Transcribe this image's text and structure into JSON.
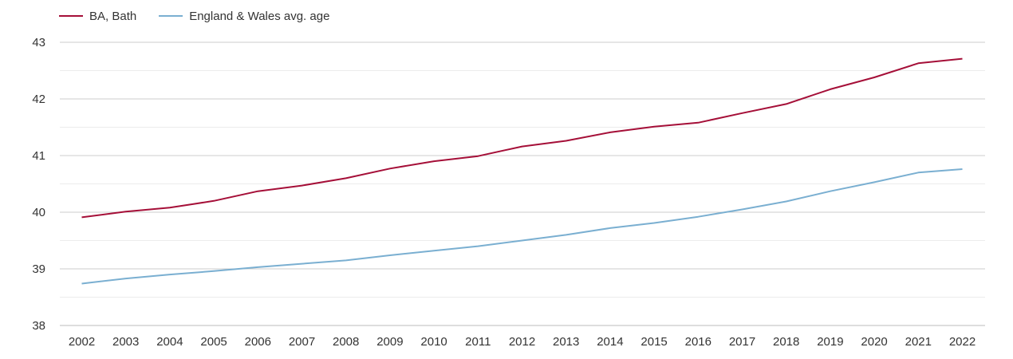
{
  "chart_data": {
    "type": "line",
    "title": "",
    "xlabel": "",
    "ylabel": "",
    "categories": [
      "2002",
      "2003",
      "2004",
      "2005",
      "2006",
      "2007",
      "2008",
      "2009",
      "2010",
      "2011",
      "2012",
      "2013",
      "2014",
      "2015",
      "2016",
      "2017",
      "2018",
      "2019",
      "2020",
      "2021",
      "2022"
    ],
    "ylim": [
      38,
      43
    ],
    "yticks": [
      38,
      39,
      40,
      41,
      42,
      43
    ],
    "grid": true,
    "legend_position": "top-left",
    "series": [
      {
        "name": "BA, Bath",
        "color": "#a50f38",
        "values": [
          39.91,
          40.01,
          40.08,
          40.2,
          40.37,
          40.47,
          40.6,
          40.77,
          40.9,
          40.99,
          41.16,
          41.26,
          41.41,
          41.51,
          41.58,
          41.75,
          41.91,
          42.17,
          42.38,
          42.63,
          42.71
        ]
      },
      {
        "name": "England & Wales avg. age",
        "color": "#7aafd1",
        "values": [
          38.74,
          38.83,
          38.9,
          38.96,
          39.03,
          39.09,
          39.15,
          39.24,
          39.32,
          39.4,
          39.5,
          39.6,
          39.72,
          39.81,
          39.92,
          40.05,
          40.19,
          40.37,
          40.53,
          40.7,
          40.76
        ]
      }
    ]
  }
}
